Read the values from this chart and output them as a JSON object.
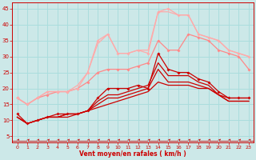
{
  "background_color": "#cce8e8",
  "grid_color": "#aadddd",
  "xlabel": "Vent moyen/en rafales ( km/h )",
  "xlabel_color": "#cc0000",
  "tick_color": "#cc0000",
  "xlim": [
    -0.5,
    23.5
  ],
  "ylim": [
    3,
    47
  ],
  "yticks": [
    5,
    10,
    15,
    20,
    25,
    30,
    35,
    40,
    45
  ],
  "xticks": [
    0,
    1,
    2,
    3,
    4,
    5,
    6,
    7,
    8,
    9,
    10,
    11,
    12,
    13,
    14,
    15,
    16,
    17,
    18,
    19,
    20,
    21,
    22,
    23
  ],
  "series": [
    {
      "x": [
        0,
        1,
        2,
        3,
        4,
        5,
        6,
        7,
        8,
        9,
        10,
        11,
        12,
        13,
        14,
        15,
        16,
        17,
        18,
        19,
        20,
        21,
        22,
        23
      ],
      "y": [
        12,
        9,
        10,
        11,
        12,
        12,
        12,
        13,
        17,
        20,
        20,
        20,
        21,
        20,
        31,
        26,
        25,
        25,
        23,
        22,
        19,
        17,
        17,
        17
      ],
      "color": "#cc0000",
      "lw": 0.9,
      "marker": "D",
      "ms": 2.0
    },
    {
      "x": [
        0,
        1,
        2,
        3,
        4,
        5,
        6,
        7,
        8,
        9,
        10,
        11,
        12,
        13,
        14,
        15,
        16,
        17,
        18,
        19,
        20,
        21,
        22,
        23
      ],
      "y": [
        11,
        9,
        10,
        11,
        11,
        12,
        12,
        13,
        16,
        18,
        18,
        19,
        20,
        21,
        28,
        24,
        24,
        24,
        22,
        21,
        18,
        17,
        17,
        17
      ],
      "color": "#cc0000",
      "lw": 0.9,
      "marker": null,
      "ms": 0
    },
    {
      "x": [
        0,
        1,
        2,
        3,
        4,
        5,
        6,
        7,
        8,
        9,
        10,
        11,
        12,
        13,
        14,
        15,
        16,
        17,
        18,
        19,
        20,
        21,
        22,
        23
      ],
      "y": [
        11,
        9,
        10,
        11,
        11,
        12,
        12,
        13,
        15,
        17,
        17,
        18,
        19,
        20,
        26,
        22,
        22,
        22,
        21,
        20,
        18,
        16,
        16,
        16
      ],
      "color": "#cc0000",
      "lw": 0.9,
      "marker": null,
      "ms": 0
    },
    {
      "x": [
        0,
        1,
        2,
        3,
        4,
        5,
        6,
        7,
        8,
        9,
        10,
        11,
        12,
        13,
        14,
        15,
        16,
        17,
        18,
        19,
        20,
        21,
        22,
        23
      ],
      "y": [
        11,
        9,
        10,
        11,
        11,
        11,
        12,
        13,
        14,
        15,
        16,
        17,
        18,
        19,
        22,
        21,
        21,
        21,
        20,
        20,
        18,
        16,
        16,
        16
      ],
      "color": "#cc0000",
      "lw": 0.9,
      "marker": null,
      "ms": 0
    },
    {
      "x": [
        0,
        1,
        2,
        3,
        4,
        5,
        6,
        7,
        8,
        9,
        10,
        11,
        12,
        13,
        14,
        15,
        16,
        17,
        18,
        19,
        20,
        21,
        22,
        23
      ],
      "y": [
        17,
        15,
        17,
        18,
        19,
        19,
        20,
        22,
        25,
        26,
        26,
        26,
        27,
        28,
        35,
        32,
        32,
        37,
        36,
        35,
        32,
        31,
        30,
        26
      ],
      "color": "#ff8888",
      "lw": 0.9,
      "marker": "D",
      "ms": 2.0
    },
    {
      "x": [
        0,
        1,
        2,
        3,
        4,
        5,
        6,
        7,
        8,
        9,
        10,
        11,
        12,
        13,
        14,
        15,
        16,
        17,
        18,
        19,
        20,
        21,
        22,
        23
      ],
      "y": [
        17,
        15,
        17,
        19,
        19,
        19,
        20,
        25,
        35,
        37,
        31,
        31,
        32,
        31,
        44,
        45,
        43,
        43,
        37,
        36,
        35,
        32,
        31,
        30
      ],
      "color": "#ffaaaa",
      "lw": 0.9,
      "marker": "D",
      "ms": 2.0
    },
    {
      "x": [
        0,
        1,
        2,
        3,
        4,
        5,
        6,
        7,
        8,
        9,
        10,
        11,
        12,
        13,
        14,
        15,
        16,
        17,
        18,
        19,
        20,
        21,
        22,
        23
      ],
      "y": [
        17,
        15,
        17,
        19,
        19,
        19,
        21,
        25,
        34,
        37,
        31,
        31,
        32,
        32,
        44,
        44,
        43,
        43,
        37,
        36,
        35,
        32,
        31,
        30
      ],
      "color": "#ffaaaa",
      "lw": 0.9,
      "marker": null,
      "ms": 0
    }
  ]
}
